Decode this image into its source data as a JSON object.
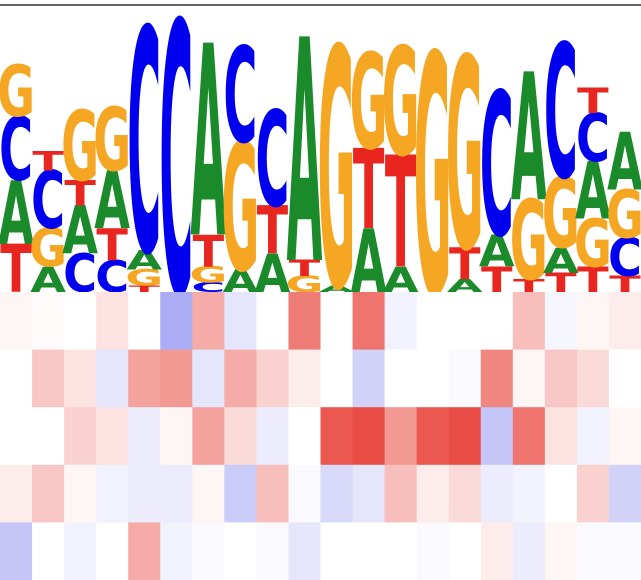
{
  "figure": {
    "logo": {
      "colors": {
        "A": "#1a8a2a",
        "C": "#0000ee",
        "G": "#f5a623",
        "T": "#e8251f"
      },
      "columns": [
        [
          {
            "l": "T",
            "w": 15
          },
          {
            "l": "A",
            "w": 20
          },
          {
            "l": "C",
            "w": 20
          },
          {
            "l": "G",
            "w": 16
          }
        ],
        [
          {
            "l": "A",
            "w": 8
          },
          {
            "l": "G",
            "w": 12
          },
          {
            "l": "C",
            "w": 18
          },
          {
            "l": "T",
            "w": 6
          }
        ],
        [
          {
            "l": "C",
            "w": 12
          },
          {
            "l": "A",
            "w": 15
          },
          {
            "l": "T",
            "w": 8
          },
          {
            "l": "G",
            "w": 22
          }
        ],
        [
          {
            "l": "C",
            "w": 10
          },
          {
            "l": "T",
            "w": 10
          },
          {
            "l": "A",
            "w": 18
          },
          {
            "l": "G",
            "w": 20
          }
        ],
        [
          {
            "l": "T",
            "w": 2
          },
          {
            "l": "G",
            "w": 5
          },
          {
            "l": "A",
            "w": 6
          },
          {
            "l": "C",
            "w": 70
          }
        ],
        [
          {
            "l": "C",
            "w": 85
          }
        ],
        [
          {
            "l": "C",
            "w": 3
          },
          {
            "l": "G",
            "w": 5
          },
          {
            "l": "T",
            "w": 10
          },
          {
            "l": "A",
            "w": 60
          }
        ],
        [
          {
            "l": "A",
            "w": 7
          },
          {
            "l": "G",
            "w": 40
          },
          {
            "l": "C",
            "w": 30
          }
        ],
        [
          {
            "l": "A",
            "w": 12
          },
          {
            "l": "T",
            "w": 15
          },
          {
            "l": "C",
            "w": 30
          }
        ],
        [
          {
            "l": "G",
            "w": 5
          },
          {
            "l": "T",
            "w": 5
          },
          {
            "l": "A",
            "w": 70
          }
        ],
        [
          {
            "l": "A",
            "w": 2
          },
          {
            "l": "G",
            "w": 75
          }
        ],
        [
          {
            "l": "A",
            "w": 20
          },
          {
            "l": "T",
            "w": 25
          },
          {
            "l": "G",
            "w": 30
          }
        ],
        [
          {
            "l": "A",
            "w": 8
          },
          {
            "l": "T",
            "w": 35
          },
          {
            "l": "G",
            "w": 34
          }
        ],
        [
          {
            "l": "G",
            "w": 75
          }
        ],
        [
          {
            "l": "A",
            "w": 4
          },
          {
            "l": "T",
            "w": 10
          },
          {
            "l": "G",
            "w": 60
          }
        ],
        [
          {
            "l": "T",
            "w": 8
          },
          {
            "l": "A",
            "w": 10
          },
          {
            "l": "C",
            "w": 45
          }
        ],
        [
          {
            "l": "T",
            "w": 4
          },
          {
            "l": "G",
            "w": 25
          },
          {
            "l": "A",
            "w": 40
          }
        ],
        [
          {
            "l": "T",
            "w": 6
          },
          {
            "l": "A",
            "w": 8
          },
          {
            "l": "G",
            "w": 22
          },
          {
            "l": "C",
            "w": 42
          }
        ],
        [
          {
            "l": "T",
            "w": 8
          },
          {
            "l": "G",
            "w": 15
          },
          {
            "l": "A",
            "w": 18
          },
          {
            "l": "C",
            "w": 15
          },
          {
            "l": "T",
            "w": 8
          }
        ],
        [
          {
            "l": "T",
            "w": 5
          },
          {
            "l": "C",
            "w": 12
          },
          {
            "l": "G",
            "w": 15
          },
          {
            "l": "A",
            "w": 18
          }
        ]
      ]
    },
    "heatmap": {
      "values": [
        [
          0.05,
          0.02,
          0.0,
          0.15,
          0.0,
          -0.65,
          0.45,
          -0.2,
          0.0,
          0.7,
          0.0,
          0.75,
          -0.1,
          0.0,
          0.0,
          0.0,
          0.35,
          -0.08,
          0.05,
          0.1
        ],
        [
          0.0,
          0.3,
          0.15,
          -0.2,
          0.5,
          0.55,
          -0.2,
          0.45,
          0.25,
          0.1,
          0.0,
          -0.35,
          0.0,
          0.0,
          -0.05,
          0.65,
          0.05,
          0.3,
          0.2,
          0.0
        ],
        [
          0.0,
          0.0,
          0.25,
          0.15,
          -0.15,
          0.05,
          0.5,
          0.2,
          -0.15,
          0.0,
          0.9,
          0.95,
          0.55,
          0.9,
          0.95,
          -0.45,
          0.75,
          0.15,
          -0.1,
          0.05
        ],
        [
          0.1,
          0.3,
          0.05,
          -0.1,
          -0.15,
          -0.15,
          0.05,
          -0.4,
          0.35,
          -0.05,
          -0.3,
          -0.2,
          0.35,
          0.1,
          0.2,
          -0.15,
          -0.1,
          0.0,
          0.25,
          -0.35
        ],
        [
          -0.45,
          0.0,
          -0.1,
          0.0,
          0.45,
          -0.1,
          -0.05,
          0.0,
          -0.05,
          -0.2,
          0.0,
          0.0,
          0.0,
          -0.05,
          0.0,
          0.1,
          -0.15,
          0.05,
          -0.05,
          -0.05
        ]
      ]
    }
  }
}
